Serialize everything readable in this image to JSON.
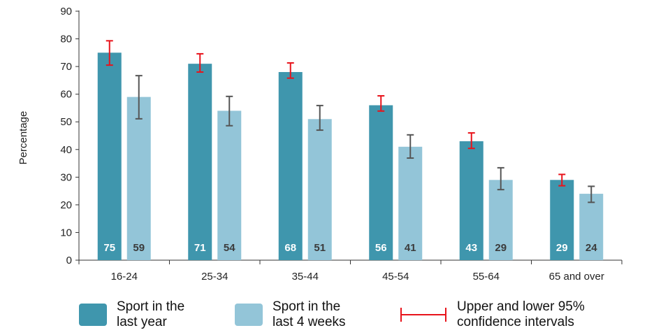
{
  "chart_data": {
    "type": "bar",
    "ylabel": "Percentage",
    "ylim": [
      0,
      90
    ],
    "yticks": [
      0,
      10,
      20,
      30,
      40,
      50,
      60,
      70,
      80,
      90
    ],
    "grid": false,
    "legend_position": "bottom",
    "categories": [
      "16-24",
      "25-34",
      "35-44",
      "45-54",
      "55-64",
      "65 and over"
    ],
    "series": [
      {
        "name": "Sport in the last year",
        "color": "#3f96ad",
        "label_color": "#ffffff",
        "error_color": "#e8131b",
        "values": [
          75,
          71,
          68,
          56,
          43,
          29
        ],
        "ci_lower": [
          70.5,
          68.0,
          65.8,
          53.9,
          40.4,
          26.9
        ],
        "ci_upper": [
          79.3,
          74.6,
          71.3,
          59.4,
          46.0,
          31.0
        ]
      },
      {
        "name": "Sport in the last 4 weeks",
        "color": "#93c5d8",
        "label_color": "#3b3b3b",
        "error_color": "#555555",
        "values": [
          59,
          54,
          51,
          41,
          29,
          24
        ],
        "ci_lower": [
          51.1,
          48.6,
          47.0,
          36.9,
          25.5,
          20.9
        ],
        "ci_upper": [
          66.7,
          59.2,
          55.9,
          45.3,
          33.4,
          26.7
        ]
      }
    ]
  },
  "legend": {
    "items": [
      {
        "label_line1": "Sport in the",
        "label_line2": "last year",
        "color": "#3f96ad"
      },
      {
        "label_line1": "Sport in the",
        "label_line2": "last 4 weeks",
        "color": "#93c5d8"
      },
      {
        "label_line1": "Upper and lower 95%",
        "label_line2": "confidence intervals",
        "color": "#e8131b"
      }
    ]
  }
}
